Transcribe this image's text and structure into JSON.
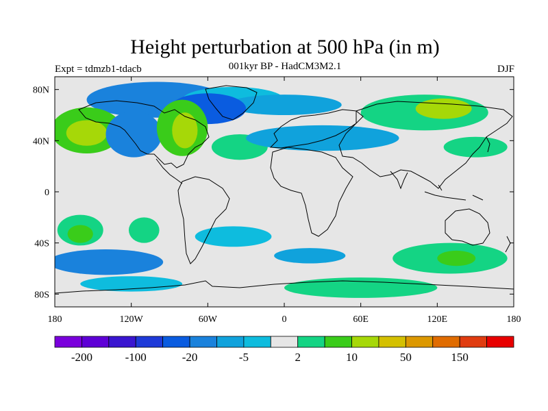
{
  "title": "Height perturbation at 500 hPa (in m)",
  "subtitle": "001kyr BP - HadCM3M2.1",
  "experiment": "Expt = tdmzb1-tdacb",
  "season": "DJF",
  "map": {
    "lon_range": [
      -180,
      180
    ],
    "lat_range": [
      -90,
      90
    ],
    "background_color": "#e6e6e6",
    "lat_ticks": [
      {
        "value": 80,
        "label": "80N"
      },
      {
        "value": 40,
        "label": "40N"
      },
      {
        "value": 0,
        "label": "0"
      },
      {
        "value": -40,
        "label": "40S"
      },
      {
        "value": -80,
        "label": "80S"
      }
    ],
    "lon_ticks": [
      {
        "value": -180,
        "label": "180"
      },
      {
        "value": -120,
        "label": "120W"
      },
      {
        "value": -60,
        "label": "60W"
      },
      {
        "value": 0,
        "label": "0"
      },
      {
        "value": 60,
        "label": "60E"
      },
      {
        "value": 120,
        "label": "120E"
      },
      {
        "value": 180,
        "label": "180"
      }
    ]
  },
  "colorbar": {
    "colors": [
      "#7a00dc",
      "#5e00d6",
      "#3a16d0",
      "#1e3ad8",
      "#0a5ce0",
      "#1a82dc",
      "#10a2dc",
      "#0ebcde",
      "#e6e6e6",
      "#14d484",
      "#3acc1a",
      "#a6d808",
      "#d4c000",
      "#dc9800",
      "#e06c00",
      "#e03c10",
      "#e80000"
    ],
    "labels": [
      "-200",
      "-100",
      "-20",
      "-5",
      "2",
      "10",
      "50",
      "150"
    ]
  },
  "chart_data": {
    "type": "heatmap",
    "title": "Height perturbation at 500 hPa (in m)",
    "subtitle": "001kyr BP - HadCM3M2.1",
    "xlabel": "",
    "ylabel": "",
    "xlim": [
      -180,
      180
    ],
    "ylim": [
      -90,
      90
    ],
    "anomaly_regions": [
      {
        "lon": -100,
        "lat": 72,
        "rx": 55,
        "ry": 14,
        "level": "#1a82dc"
      },
      {
        "lon": -40,
        "lat": 72,
        "rx": 40,
        "ry": 10,
        "level": "#0ebcde"
      },
      {
        "lon": 0,
        "lat": 68,
        "rx": 45,
        "ry": 8,
        "level": "#10a2dc"
      },
      {
        "lon": -60,
        "lat": 65,
        "rx": 30,
        "ry": 12,
        "level": "#0a5ce0"
      },
      {
        "lon": -155,
        "lat": 48,
        "rx": 28,
        "ry": 18,
        "level": "#3acc1a"
      },
      {
        "lon": -155,
        "lat": 46,
        "rx": 16,
        "ry": 10,
        "level": "#a6d808"
      },
      {
        "lon": -118,
        "lat": 45,
        "rx": 22,
        "ry": 18,
        "level": "#1a82dc"
      },
      {
        "lon": -80,
        "lat": 50,
        "rx": 20,
        "ry": 22,
        "level": "#3acc1a"
      },
      {
        "lon": -78,
        "lat": 48,
        "rx": 10,
        "ry": 14,
        "level": "#a6d808"
      },
      {
        "lon": -35,
        "lat": 35,
        "rx": 22,
        "ry": 10,
        "level": "#14d484"
      },
      {
        "lon": 30,
        "lat": 42,
        "rx": 60,
        "ry": 10,
        "level": "#10a2dc"
      },
      {
        "lon": 110,
        "lat": 62,
        "rx": 50,
        "ry": 14,
        "level": "#14d484"
      },
      {
        "lon": 125,
        "lat": 65,
        "rx": 22,
        "ry": 8,
        "level": "#a6d808"
      },
      {
        "lon": 150,
        "lat": 35,
        "rx": 25,
        "ry": 8,
        "level": "#14d484"
      },
      {
        "lon": -160,
        "lat": -30,
        "rx": 18,
        "ry": 12,
        "level": "#14d484"
      },
      {
        "lon": -160,
        "lat": -33,
        "rx": 10,
        "ry": 7,
        "level": "#3acc1a"
      },
      {
        "lon": -110,
        "lat": -30,
        "rx": 12,
        "ry": 10,
        "level": "#14d484"
      },
      {
        "lon": -140,
        "lat": -55,
        "rx": 45,
        "ry": 10,
        "level": "#1a82dc"
      },
      {
        "lon": -40,
        "lat": -35,
        "rx": 30,
        "ry": 8,
        "level": "#0ebcde"
      },
      {
        "lon": 20,
        "lat": -50,
        "rx": 28,
        "ry": 6,
        "level": "#10a2dc"
      },
      {
        "lon": 130,
        "lat": -52,
        "rx": 45,
        "ry": 12,
        "level": "#14d484"
      },
      {
        "lon": 135,
        "lat": -52,
        "rx": 15,
        "ry": 6,
        "level": "#3acc1a"
      },
      {
        "lon": 60,
        "lat": -75,
        "rx": 60,
        "ry": 8,
        "level": "#14d484"
      },
      {
        "lon": -120,
        "lat": -72,
        "rx": 40,
        "ry": 6,
        "level": "#0ebcde"
      }
    ]
  }
}
